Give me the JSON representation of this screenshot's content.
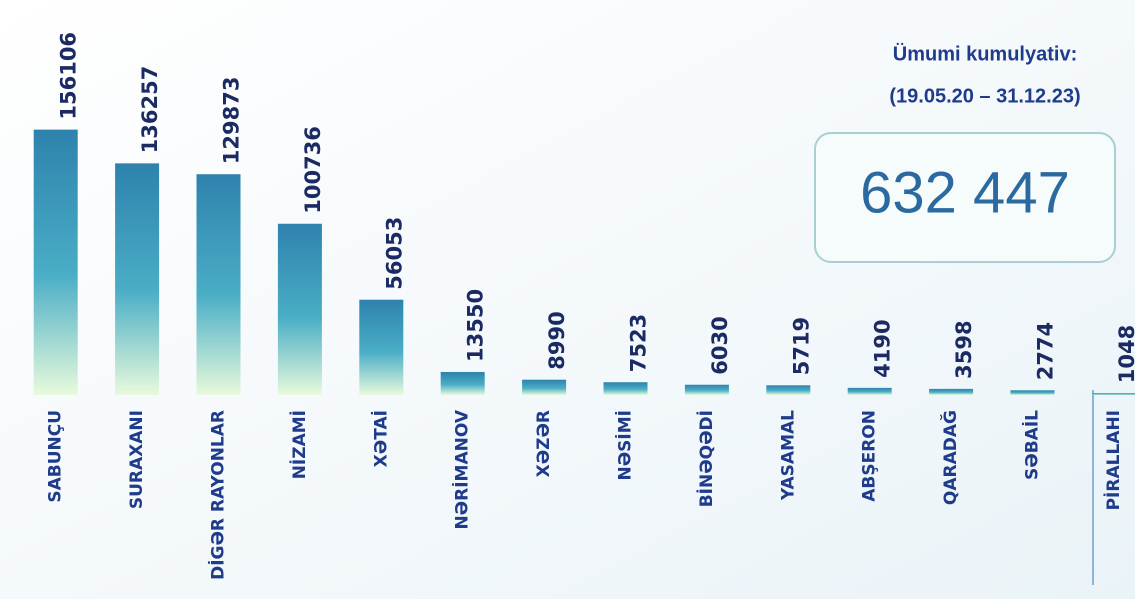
{
  "chart_data": {
    "type": "bar",
    "categories": [
      "SABUNÇU",
      "SURAXANI",
      "DİGƏR RAYONLAR",
      "NİZAMİ",
      "XƏTAİ",
      "NƏRİMANOV",
      "XƏZƏR",
      "NƏSİMİ",
      "BİNƏQƏDİ",
      "YASAMAL",
      "ABŞERON",
      "QARADAĞ",
      "SƏBAİL",
      "PİRALLAHI"
    ],
    "values": [
      156106,
      136257,
      129873,
      100736,
      56053,
      13550,
      8990,
      7523,
      6030,
      5719,
      4190,
      3598,
      2774,
      1048
    ],
    "color": "#2e86b0",
    "ylim": [
      0,
      160000
    ],
    "annotations": [
      "Ümumi kumulyativ:",
      "(19.05.20 – 31.12.23)",
      "632 447"
    ]
  }
}
